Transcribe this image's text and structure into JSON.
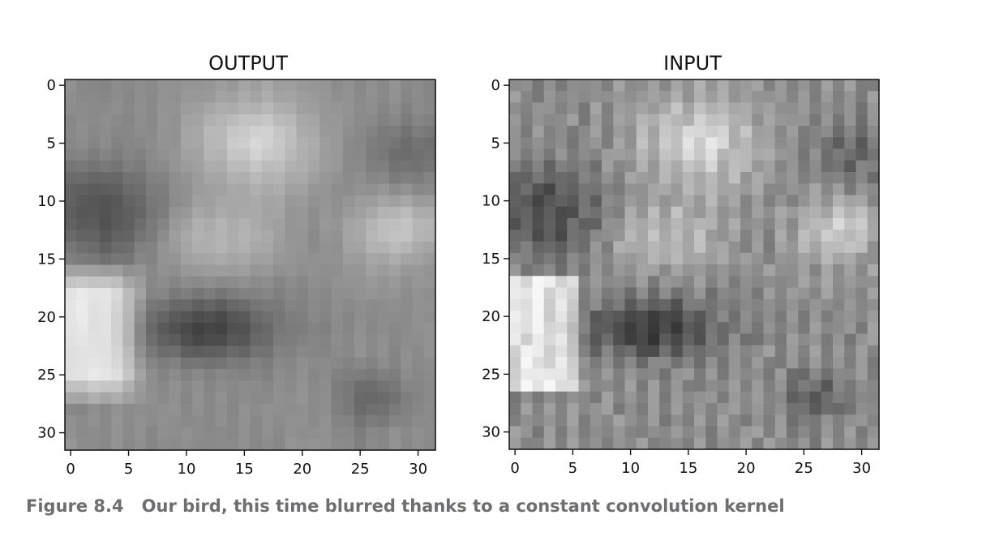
{
  "caption": {
    "figure_number": "Figure 8.4",
    "text": "Our bird, this time blurred thanks to a constant convolution kernel"
  },
  "colormap": "gray",
  "chart_data": [
    {
      "type": "heatmap",
      "title": "OUTPUT",
      "grid_size": [
        32,
        32
      ],
      "xlim": [
        -0.5,
        31.5
      ],
      "ylim": [
        31.5,
        -0.5
      ],
      "x_ticks": [
        0,
        5,
        10,
        15,
        20,
        25,
        30
      ],
      "y_ticks": [
        0,
        5,
        10,
        15,
        20,
        25,
        30
      ],
      "x_tick_labels": [
        "0",
        "5",
        "10",
        "15",
        "20",
        "25",
        "30"
      ],
      "y_tick_labels": [
        "0",
        "5",
        "10",
        "15",
        "20",
        "25",
        "30"
      ],
      "value_range": [
        0,
        1
      ],
      "blurred": true
    },
    {
      "type": "heatmap",
      "title": "INPUT",
      "grid_size": [
        32,
        32
      ],
      "xlim": [
        -0.5,
        31.5
      ],
      "ylim": [
        31.5,
        -0.5
      ],
      "x_ticks": [
        0,
        5,
        10,
        15,
        20,
        25,
        30
      ],
      "y_ticks": [
        0,
        5,
        10,
        15,
        20,
        25,
        30
      ],
      "x_tick_labels": [
        "0",
        "5",
        "10",
        "15",
        "20",
        "25",
        "30"
      ],
      "y_tick_labels": [
        "0",
        "5",
        "10",
        "15",
        "20",
        "25",
        "30"
      ],
      "value_range": [
        0,
        1
      ],
      "blurred": false
    }
  ]
}
